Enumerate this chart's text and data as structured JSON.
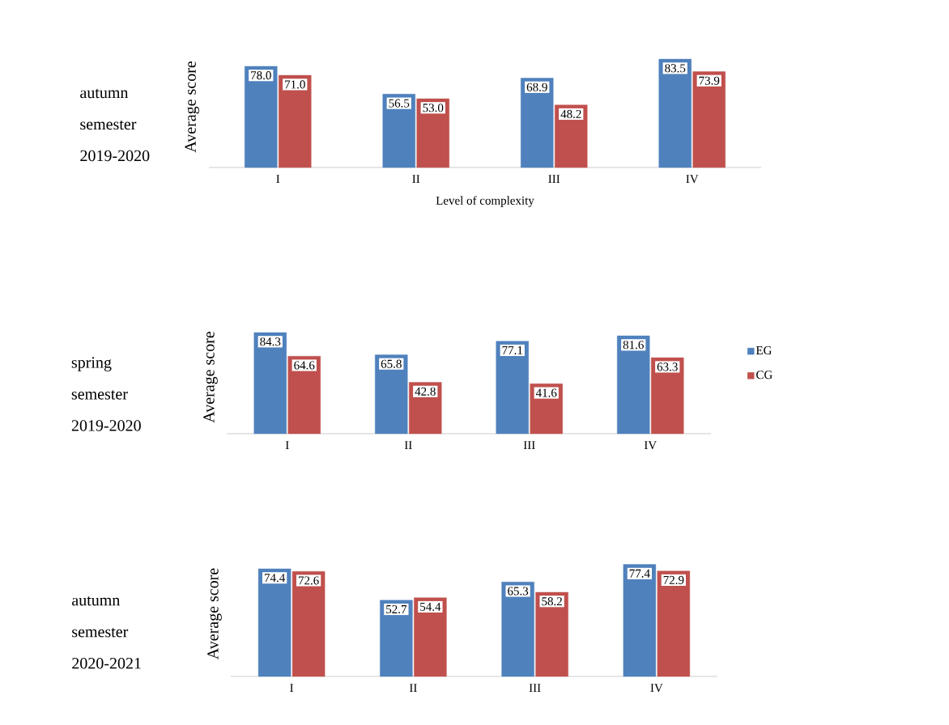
{
  "chart_data": [
    {
      "type": "bar",
      "title": "autumn semester 2019-2020",
      "xlabel": "Level of complexity",
      "ylabel": "Average score",
      "categories": [
        "I",
        "II",
        "III",
        "IV"
      ],
      "series": [
        {
          "color": "#4f81bd",
          "values": [
            78.0,
            56.5,
            68.9,
            83.5
          ],
          "value_labels": [
            "78.0",
            "56.5",
            "68.9",
            "83.5"
          ]
        },
        {
          "color": "#c0504d",
          "values": [
            71.0,
            53.0,
            48.2,
            73.9
          ],
          "value_labels": [
            "71.0",
            "53.0",
            "48.2",
            "73.9"
          ]
        }
      ]
    },
    {
      "type": "bar",
      "title": "spring semester 2019-2020",
      "ylabel": "Average score",
      "categories": [
        "I",
        "II",
        "III",
        "IV"
      ],
      "legend": "right",
      "series": [
        {
          "name": "EG",
          "color": "#4f81bd",
          "values": [
            84.3,
            65.8,
            77.1,
            81.6
          ],
          "value_labels": [
            "84.3",
            "65.8",
            "77.1",
            "81.6"
          ]
        },
        {
          "name": "CG",
          "color": "#c0504d",
          "values": [
            64.6,
            42.8,
            41.6,
            63.3
          ],
          "value_labels": [
            "64.6",
            "42.8",
            "41.6",
            "63.3"
          ]
        }
      ]
    },
    {
      "type": "bar",
      "title": "autumn semester 2020-2021",
      "ylabel": "Average score",
      "categories": [
        "I",
        "II",
        "III",
        "IV"
      ],
      "series": [
        {
          "color": "#4f81bd",
          "values": [
            74.4,
            52.7,
            65.3,
            77.4
          ],
          "value_labels": [
            "74.4",
            "52.7",
            "65.3",
            "77.4"
          ]
        },
        {
          "color": "#c0504d",
          "values": [
            72.6,
            54.4,
            58.2,
            72.9
          ],
          "value_labels": [
            "72.6",
            "54.4",
            "58.2",
            "72.9"
          ]
        }
      ]
    }
  ]
}
